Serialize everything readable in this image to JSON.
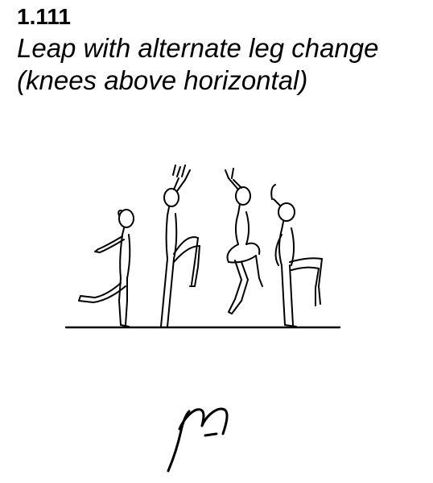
{
  "element": {
    "code": "1.111",
    "title_line1": "Leap with alternate leg change",
    "title_line2": "(knees above horizontal)"
  },
  "illustration": {
    "icon": "gymnast-leap-sequence-icon",
    "ink_color": "#000000"
  },
  "symbol": {
    "icon": "handwritten-m-symbol-icon",
    "text": "m"
  }
}
